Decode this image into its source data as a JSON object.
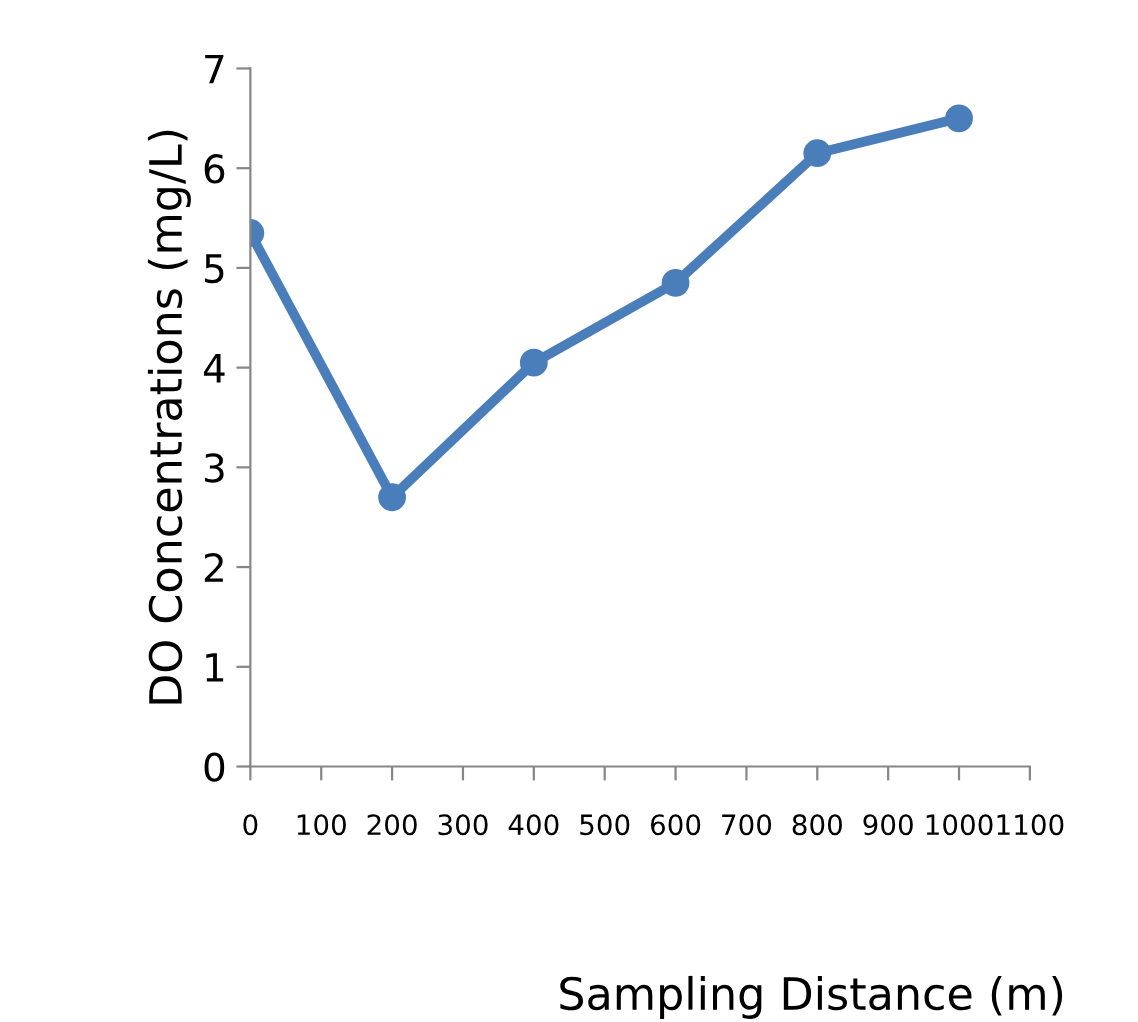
{
  "chart_data": {
    "type": "line",
    "xlabel": "Sampling Distance (m)",
    "ylabel": "DO Concentrations (mg/L)",
    "x": [
      0,
      200,
      400,
      600,
      800,
      1000
    ],
    "series": [
      {
        "color": "#4a7ebb",
        "values": [
          5.35,
          2.7,
          4.05,
          4.85,
          6.15,
          6.5
        ]
      }
    ],
    "xlim": [
      0,
      1100
    ],
    "xticks": [
      0,
      100,
      200,
      300,
      400,
      500,
      600,
      700,
      800,
      900,
      1000,
      1100
    ],
    "ylim": [
      0,
      7
    ],
    "yticks": [
      0,
      1,
      2,
      3,
      4,
      5,
      6,
      7
    ],
    "grid": false,
    "legend": false,
    "marker": "circle",
    "line_style": "solid"
  }
}
